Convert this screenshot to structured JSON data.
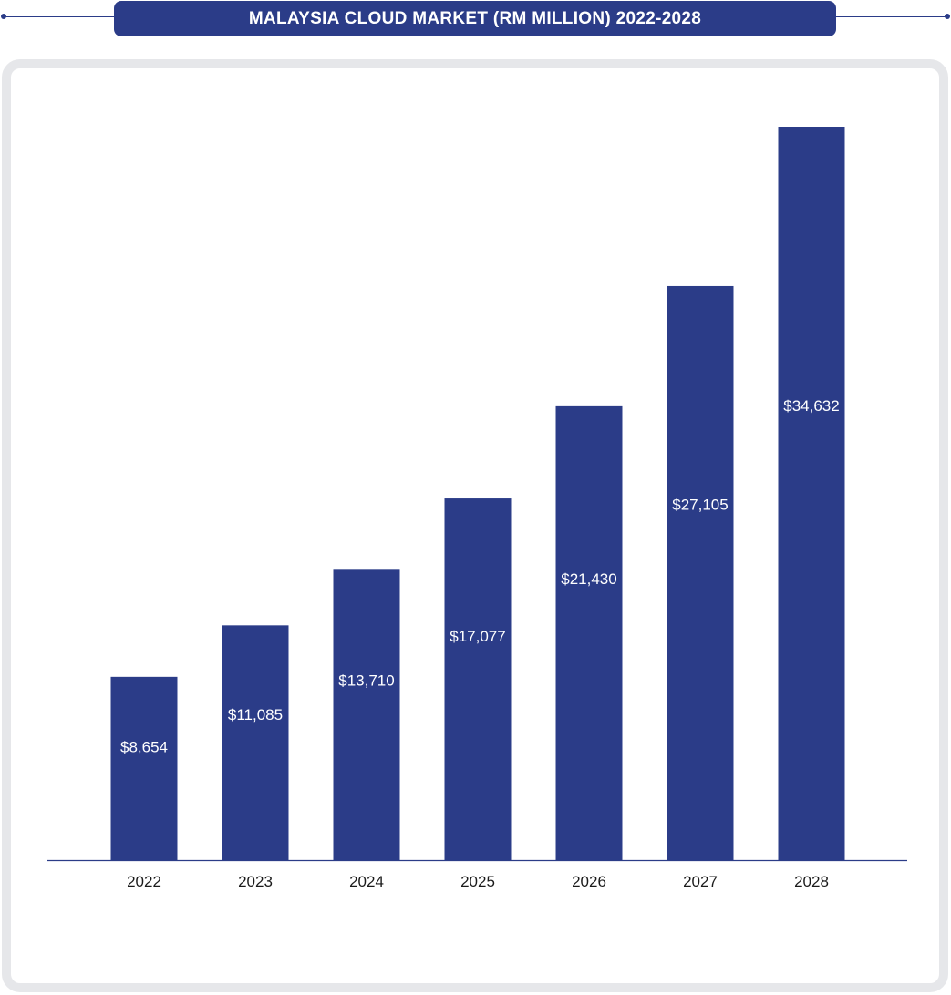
{
  "chart_data": {
    "type": "bar",
    "title": "MALAYSIA CLOUD MARKET (RM MILLION) 2022-2028",
    "categories": [
      "2022",
      "2023",
      "2024",
      "2025",
      "2026",
      "2027",
      "2028"
    ],
    "values": [
      8654,
      11085,
      13710,
      17077,
      21430,
      27105,
      34632
    ],
    "value_labels": [
      "$8,654",
      "$11,085",
      "$13,710",
      "$17,077",
      "$21,430",
      "$27,105",
      "$34,632"
    ],
    "xlabel": "",
    "ylabel": "",
    "ylim": [
      0,
      34632
    ],
    "grid": false,
    "legend": "none",
    "bar_color": "#2b3c88",
    "label_color": "#ffffff",
    "axis_color": "#2b3c88"
  }
}
